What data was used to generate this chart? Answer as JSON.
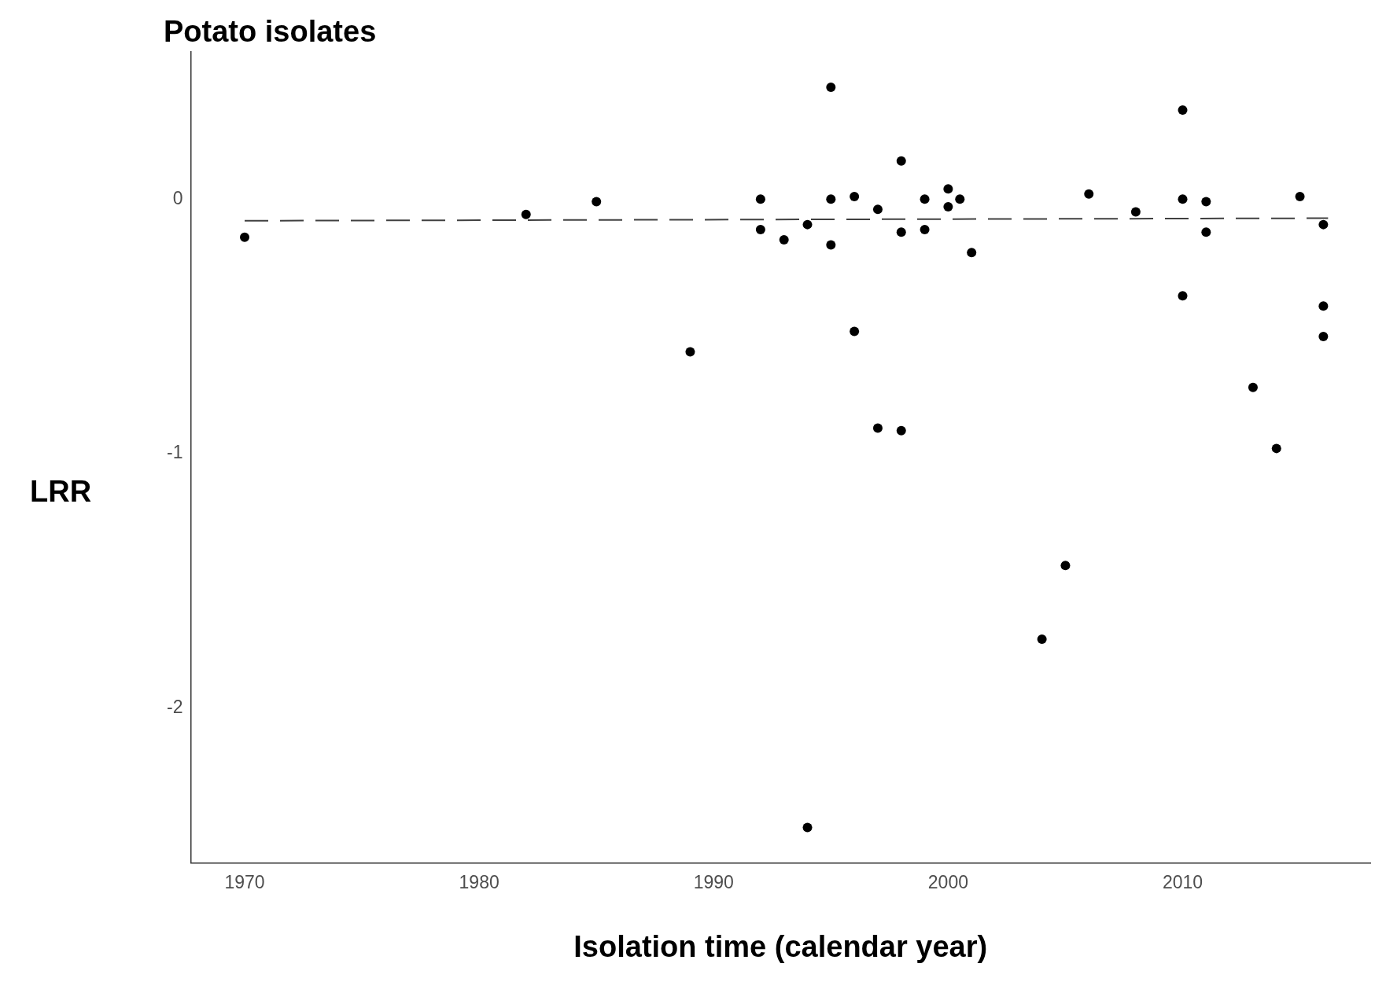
{
  "chart_data": {
    "type": "scatter",
    "title": "Potato isolates",
    "xlabel": "Isolation time (calendar year)",
    "ylabel": "LRR",
    "xlim": [
      1967.7,
      2018
    ],
    "xticks": [
      1970,
      1980,
      1990,
      2000,
      2010
    ],
    "ylim": [
      -2.61,
      0.58
    ],
    "yticks": [
      -2,
      -1,
      0
    ],
    "grid": false,
    "legend": false,
    "marker": "circle",
    "series": [
      {
        "type": "scatter",
        "color": "#000000",
        "x": [
          1970,
          1982,
          1985,
          1989,
          1992,
          1992,
          1993,
          1994,
          1994,
          1995,
          1995,
          1995,
          1996,
          1996,
          1997,
          1997,
          1998,
          1998,
          1998,
          1999,
          1999,
          2000,
          2000,
          2000.5,
          2001,
          2004,
          2005,
          2006,
          2008,
          2010,
          2010,
          2010,
          2011,
          2011,
          2013,
          2014,
          2015,
          2016,
          2016,
          2016
        ],
        "values": [
          -0.15,
          -0.06,
          -0.01,
          -0.6,
          0.0,
          -0.12,
          -0.16,
          -0.1,
          -2.47,
          0.44,
          0.0,
          -0.18,
          0.01,
          -0.52,
          -0.04,
          -0.9,
          0.15,
          -0.13,
          -0.91,
          0.0,
          -0.12,
          0.04,
          -0.03,
          0.0,
          -0.21,
          -1.73,
          -1.44,
          0.02,
          -0.05,
          0.35,
          0.0,
          -0.38,
          -0.01,
          -0.13,
          -0.74,
          -0.98,
          0.01,
          -0.1,
          -0.42,
          -0.54
        ]
      },
      {
        "type": "line",
        "color": "#404040",
        "line_style": "dashed",
        "marker": "none",
        "x": [
          1970,
          2016.2
        ],
        "values": [
          -0.085,
          -0.075
        ]
      }
    ]
  }
}
